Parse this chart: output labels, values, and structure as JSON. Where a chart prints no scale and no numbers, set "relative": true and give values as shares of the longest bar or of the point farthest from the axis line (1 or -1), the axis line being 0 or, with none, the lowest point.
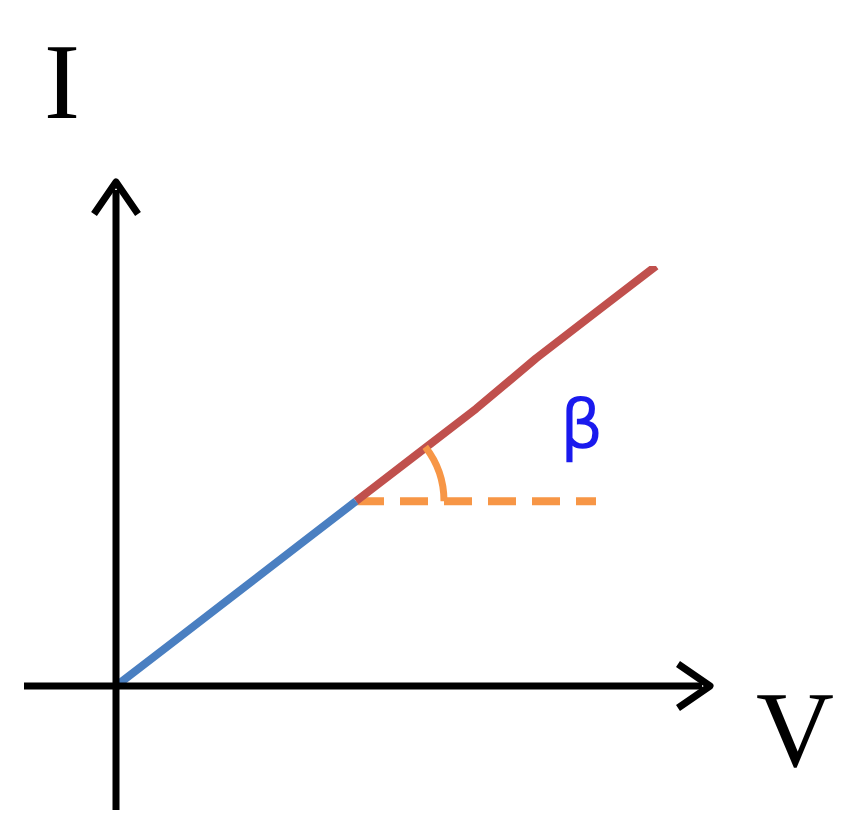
{
  "chart_data": {
    "type": "line",
    "relative": true,
    "xlabel": "V",
    "ylabel": "I",
    "annotations": [
      "β"
    ],
    "marker": "none",
    "line_style": "solid",
    "grid": false,
    "legend": false,
    "categories": [
      null,
      null,
      null,
      null,
      null,
      null,
      null,
      null,
      null,
      null
    ],
    "series": [
      {
        "color": "#4a7fc1",
        "values": [
          0,
          0.11,
          0.22,
          0.33,
          0.44,
          null,
          null,
          null,
          null,
          null
        ]
      },
      {
        "color": "#c0504d",
        "values": [
          null,
          null,
          null,
          null,
          0.44,
          0.55,
          0.66,
          0.78,
          0.89,
          1
        ]
      },
      {
        "color": "#f79646",
        "values": [
          null,
          null,
          null,
          null,
          0.44,
          0.44,
          0.44,
          0.44,
          0.44,
          null
        ],
        "line_style": "dashed"
      }
    ]
  }
}
